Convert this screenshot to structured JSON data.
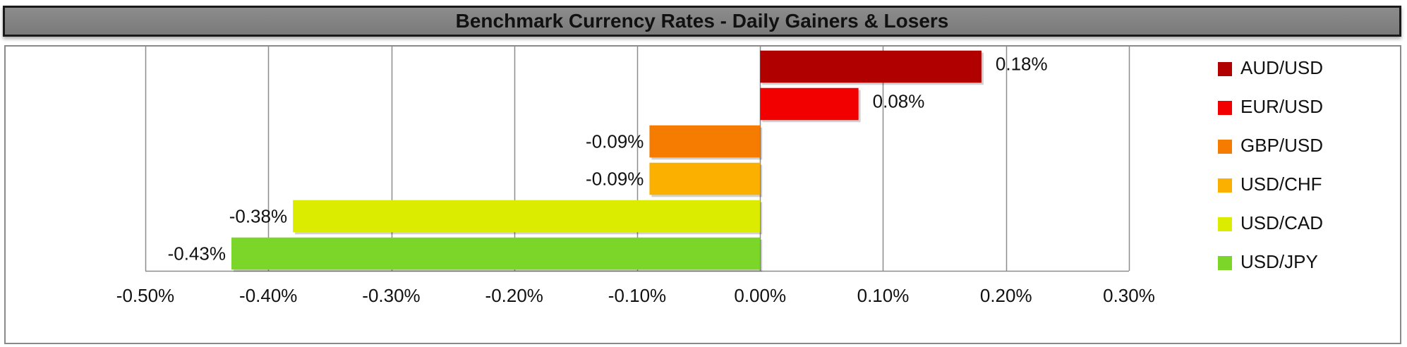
{
  "title": "Benchmark Currency Rates - Daily Gainers & Losers",
  "chart_data": {
    "type": "bar",
    "orientation": "horizontal",
    "title": "Benchmark Currency Rates - Daily Gainers & Losers",
    "xlabel": "",
    "ylabel": "",
    "xlim": [
      -0.5,
      0.3
    ],
    "xticks": [
      -0.5,
      -0.4,
      -0.3,
      -0.2,
      -0.1,
      0.0,
      0.1,
      0.2,
      0.3
    ],
    "xtick_labels": [
      "-0.50%",
      "-0.40%",
      "-0.30%",
      "-0.20%",
      "-0.10%",
      "0.00%",
      "0.10%",
      "0.20%",
      "0.30%"
    ],
    "grid": "vertical",
    "legend_position": "right",
    "categories": [
      "AUD/USD",
      "EUR/USD",
      "GBP/USD",
      "USD/CHF",
      "USD/CAD",
      "USD/JPY"
    ],
    "values": [
      0.18,
      0.08,
      -0.09,
      -0.09,
      -0.38,
      -0.43
    ],
    "labels": [
      "0.18%",
      "0.08%",
      "-0.09%",
      "-0.09%",
      "-0.38%",
      "-0.43%"
    ],
    "colors": [
      "#b00000",
      "#f20000",
      "#f57c00",
      "#fbb000",
      "#dcec00",
      "#7cd62a"
    ]
  }
}
